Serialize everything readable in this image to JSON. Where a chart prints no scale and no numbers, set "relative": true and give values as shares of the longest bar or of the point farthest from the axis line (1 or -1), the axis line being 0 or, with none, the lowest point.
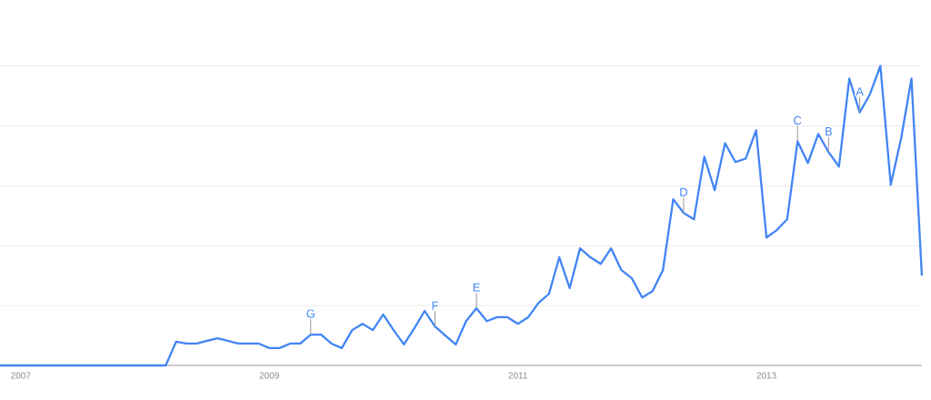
{
  "chart_data": {
    "type": "line",
    "relative": true,
    "grid": "y",
    "line_style": "solid",
    "marker": "none",
    "x": [
      "2006-11",
      "2006-12",
      "2007-01",
      "2007-02",
      "2007-03",
      "2007-04",
      "2007-05",
      "2007-06",
      "2007-07",
      "2007-08",
      "2007-09",
      "2007-10",
      "2007-11",
      "2007-12",
      "2008-01",
      "2008-02",
      "2008-03",
      "2008-04",
      "2008-05",
      "2008-06",
      "2008-07",
      "2008-08",
      "2008-09",
      "2008-10",
      "2008-11",
      "2008-12",
      "2009-01",
      "2009-02",
      "2009-03",
      "2009-04",
      "2009-05",
      "2009-06",
      "2009-07",
      "2009-08",
      "2009-09",
      "2009-10",
      "2009-11",
      "2009-12",
      "2010-01",
      "2010-02",
      "2010-03",
      "2010-04",
      "2010-05",
      "2010-06",
      "2010-07",
      "2010-08",
      "2010-09",
      "2010-10",
      "2010-11",
      "2010-12",
      "2011-01",
      "2011-02",
      "2011-03",
      "2011-04",
      "2011-05",
      "2011-06",
      "2011-07",
      "2011-08",
      "2011-09",
      "2011-10",
      "2011-11",
      "2011-12",
      "2012-01",
      "2012-02",
      "2012-03",
      "2012-04",
      "2012-05",
      "2012-06",
      "2012-07",
      "2012-08",
      "2012-09",
      "2012-10",
      "2012-11",
      "2012-12",
      "2013-01",
      "2013-02",
      "2013-03",
      "2013-04",
      "2013-05",
      "2013-06",
      "2013-07",
      "2013-08",
      "2013-09",
      "2013-10",
      "2013-11",
      "2013-12",
      "2014-01",
      "2014-02",
      "2014-03",
      "2014-04"
    ],
    "series": [
      {
        "color": "#4285f4",
        "values": [
          0,
          0,
          0,
          0,
          0,
          0,
          0,
          0,
          0,
          0,
          0,
          0,
          0,
          0,
          0,
          0,
          0,
          0.079,
          0.073,
          0.073,
          0.082,
          0.091,
          0.082,
          0.073,
          0.073,
          0.073,
          0.058,
          0.058,
          0.073,
          0.073,
          0.103,
          0.103,
          0.073,
          0.058,
          0.118,
          0.139,
          0.118,
          0.17,
          0.118,
          0.07,
          0.124,
          0.182,
          0.13,
          0.1,
          0.07,
          0.148,
          0.191,
          0.148,
          0.161,
          0.161,
          0.139,
          0.161,
          0.209,
          0.239,
          0.361,
          0.258,
          0.391,
          0.361,
          0.339,
          0.391,
          0.318,
          0.291,
          0.227,
          0.248,
          0.318,
          0.555,
          0.509,
          0.488,
          0.697,
          0.585,
          0.742,
          0.679,
          0.691,
          0.785,
          0.427,
          0.452,
          0.488,
          0.748,
          0.676,
          0.773,
          0.712,
          0.664,
          0.958,
          0.845,
          0.906,
          1,
          0.603,
          0.758,
          0.958,
          0.3
        ]
      }
    ],
    "xlim": [
      "2006-11",
      "2014-04"
    ],
    "xticks": [
      "2007",
      "2009",
      "2011",
      "2013"
    ],
    "annotations": [
      {
        "text": "A",
        "x": "2013-10",
        "y": 0.845
      },
      {
        "text": "B",
        "x": "2013-07",
        "y": 0.712
      },
      {
        "text": "C",
        "x": "2013-04",
        "y": 0.748
      },
      {
        "text": "D",
        "x": "2012-05",
        "y": 0.509
      },
      {
        "text": "E",
        "x": "2010-09",
        "y": 0.191
      },
      {
        "text": "F",
        "x": "2010-05",
        "y": 0.13
      },
      {
        "text": "G",
        "x": "2009-05",
        "y": 0.103
      }
    ]
  }
}
